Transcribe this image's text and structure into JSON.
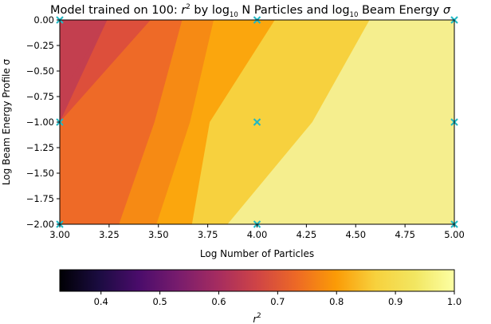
{
  "chart_data": {
    "type": "contour",
    "title": {
      "prefix": "Model trained on 100: ",
      "r": "r",
      "r_sup": "2",
      "by": " by log",
      "by_sub": "10",
      "n_part": " N Particles and log",
      "n_sub": "10",
      "beam": " Beam Energy ",
      "sigma": "σ"
    },
    "xlabel": "Log Number of Particles",
    "ylabel": "Log Beam Energy Profile σ",
    "x_ticks": [
      "3.00",
      "3.25",
      "3.50",
      "3.75",
      "4.00",
      "4.25",
      "4.50",
      "4.75",
      "5.00"
    ],
    "y_ticks": [
      "0.00",
      "−0.25",
      "−0.50",
      "−0.75",
      "−1.00",
      "−1.25",
      "−1.50",
      "−1.75",
      "−2.00"
    ],
    "xlim": [
      3.0,
      5.0
    ],
    "ylim": [
      -2.0,
      0.0
    ],
    "grid": false,
    "sample_points": [
      {
        "x": 3,
        "y": 0
      },
      {
        "x": 4,
        "y": 0
      },
      {
        "x": 5,
        "y": 0
      },
      {
        "x": 3,
        "y": -1
      },
      {
        "x": 4,
        "y": -1
      },
      {
        "x": 5,
        "y": -1
      },
      {
        "x": 3,
        "y": -2
      },
      {
        "x": 4,
        "y": -2
      },
      {
        "x": 5,
        "y": -2
      }
    ],
    "marker_color": "#1fb8c4",
    "contour_levels": [
      {
        "level": "0.65–0.70",
        "color": "#c33f4f",
        "x_at_top": 3.24,
        "x_at_mid": 3.0,
        "x_at_bottom": 3.0
      },
      {
        "level": "0.70–0.75",
        "color": "#dd4f3b",
        "x_at_top": 3.46,
        "x_at_mid": 3.0,
        "x_at_bottom": 3.0
      },
      {
        "level": "0.75–0.80",
        "color": "#ee6a27",
        "x_at_top": 3.62,
        "x_at_mid": 3.48,
        "x_at_bottom": 3.3
      },
      {
        "level": "0.80–0.85",
        "color": "#f68a14",
        "x_at_top": 3.78,
        "x_at_mid": 3.66,
        "x_at_bottom": 3.49
      },
      {
        "level": "0.85–0.90",
        "color": "#fba60d",
        "x_at_top": 4.09,
        "x_at_mid": 3.76,
        "x_at_bottom": 3.67
      },
      {
        "level": "0.90–0.95",
        "color": "#f7d13e",
        "x_at_top": 4.57,
        "x_at_mid": 4.28,
        "x_at_bottom": 3.85
      },
      {
        "level": "0.95–1.00",
        "color": "#f5ee8e",
        "x_at_top": 5.0,
        "x_at_mid": 5.0,
        "x_at_bottom": 5.0
      }
    ],
    "colorbar": {
      "label": "r",
      "label_sup": "2",
      "range": [
        0.33,
        1.0
      ],
      "ticks": [
        "0.4",
        "0.5",
        "0.6",
        "0.7",
        "0.8",
        "0.9",
        "1.0"
      ],
      "colormap": "inferno"
    }
  }
}
